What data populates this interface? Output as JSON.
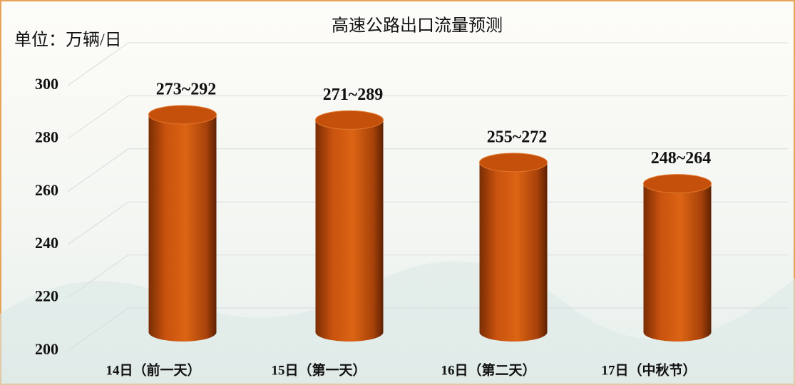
{
  "chart_data": {
    "type": "bar",
    "title": "高速公路出口流量预测",
    "y_label": "单位：万辆/日",
    "categories": [
      "14日（前一天）",
      "15日（第一天）",
      "16日（第二天）",
      "17日（中秋节）"
    ],
    "values": [
      282,
      280,
      264,
      256
    ],
    "value_labels": [
      "273~292",
      "271~289",
      "255~272",
      "248~264"
    ],
    "color": "#d0560f",
    "ylim": [
      200,
      300
    ],
    "yticks": [
      200,
      220,
      240,
      260,
      280,
      300
    ],
    "grid": true
  }
}
